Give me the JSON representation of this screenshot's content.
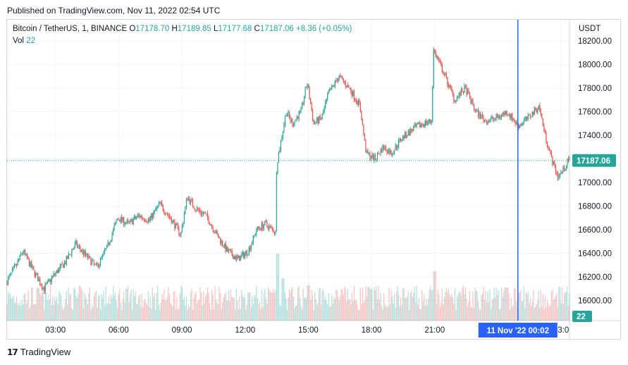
{
  "header": {
    "published": "Published on TradingView.com, Nov 11, 2022 02:54 UTC"
  },
  "legend": {
    "symbol": "Bitcoin / TetherUS, 1, BINANCE",
    "open_label": "O",
    "open": "17178.70",
    "high_label": "H",
    "high": "17189.85",
    "low_label": "L",
    "low": "17177.68",
    "close_label": "C",
    "close": "17187.06",
    "change": "+8.36 (+0.05%)",
    "volume_label": "Vol",
    "volume": "22"
  },
  "axis": {
    "currency": "USDT"
  },
  "footer": {
    "brand": "TradingView"
  },
  "colors": {
    "up": "#26a69a",
    "down": "#ef5350",
    "crosshair": "#2962ff",
    "price_tag": "#26a69a"
  },
  "chart_data": {
    "type": "candlestick",
    "y_ticks": [
      "18200.00",
      "18000.00",
      "17800.00",
      "17600.00",
      "17400.00",
      "17200.00",
      "17000.00",
      "16800.00",
      "16600.00",
      "16400.00",
      "16200.00",
      "16000.00"
    ],
    "y_tick_values": [
      18200,
      18000,
      17800,
      17600,
      17400,
      17200,
      17000,
      16800,
      16600,
      16400,
      16200,
      16000
    ],
    "ylim": [
      15830,
      18380
    ],
    "x_ticks": [
      "03:00",
      "06:00",
      "09:00",
      "12:00",
      "15:00",
      "18:00",
      "21:00",
      "03:0"
    ],
    "x_tick_hours": [
      3,
      6,
      9,
      12,
      15,
      18,
      21,
      27
    ],
    "xlim_hours": [
      0.7,
      27.4
    ],
    "last_price": 17187.06,
    "last_price_label": "17187.06",
    "volume_last_label": "22",
    "crosshair": {
      "hour": 24.95,
      "label_date": "11 Nov '22",
      "label_time": "00:02"
    },
    "price_path": [
      [
        0.7,
        16150
      ],
      [
        1.2,
        16300
      ],
      [
        1.5,
        16420
      ],
      [
        2.0,
        16250
      ],
      [
        2.5,
        16100
      ],
      [
        3.0,
        16220
      ],
      [
        3.5,
        16320
      ],
      [
        4.0,
        16480
      ],
      [
        4.5,
        16380
      ],
      [
        5.0,
        16280
      ],
      [
        5.5,
        16450
      ],
      [
        6.0,
        16700
      ],
      [
        6.5,
        16650
      ],
      [
        7.0,
        16720
      ],
      [
        7.5,
        16680
      ],
      [
        8.0,
        16820
      ],
      [
        8.5,
        16700
      ],
      [
        9.0,
        16560
      ],
      [
        9.3,
        16880
      ],
      [
        9.7,
        16780
      ],
      [
        10.2,
        16720
      ],
      [
        10.7,
        16560
      ],
      [
        11.2,
        16420
      ],
      [
        11.7,
        16350
      ],
      [
        12.2,
        16420
      ],
      [
        12.6,
        16600
      ],
      [
        13.0,
        16650
      ],
      [
        13.5,
        16580
      ],
      [
        13.55,
        17150
      ],
      [
        13.8,
        17400
      ],
      [
        14.0,
        17600
      ],
      [
        14.3,
        17500
      ],
      [
        14.7,
        17600
      ],
      [
        15.0,
        17850
      ],
      [
        15.3,
        17500
      ],
      [
        15.7,
        17550
      ],
      [
        16.0,
        17750
      ],
      [
        16.5,
        17900
      ],
      [
        17.0,
        17800
      ],
      [
        17.5,
        17650
      ],
      [
        17.8,
        17250
      ],
      [
        18.2,
        17200
      ],
      [
        18.6,
        17300
      ],
      [
        19.0,
        17250
      ],
      [
        19.5,
        17380
      ],
      [
        20.0,
        17450
      ],
      [
        20.5,
        17500
      ],
      [
        20.9,
        17520
      ],
      [
        21.0,
        18120
      ],
      [
        21.5,
        17920
      ],
      [
        22.0,
        17700
      ],
      [
        22.5,
        17800
      ],
      [
        23.0,
        17600
      ],
      [
        23.5,
        17520
      ],
      [
        24.0,
        17550
      ],
      [
        24.5,
        17600
      ],
      [
        25.0,
        17480
      ],
      [
        25.5,
        17550
      ],
      [
        26.0,
        17650
      ],
      [
        26.3,
        17400
      ],
      [
        26.6,
        17200
      ],
      [
        26.9,
        17050
      ],
      [
        27.2,
        17120
      ],
      [
        27.4,
        17187
      ]
    ],
    "volume_spikes": [
      [
        13.55,
        0.95
      ],
      [
        21.0,
        0.7
      ],
      [
        18.0,
        0.45
      ],
      [
        13.8,
        0.6
      ],
      [
        15.0,
        0.5
      ],
      [
        12.2,
        0.4
      ]
    ]
  }
}
